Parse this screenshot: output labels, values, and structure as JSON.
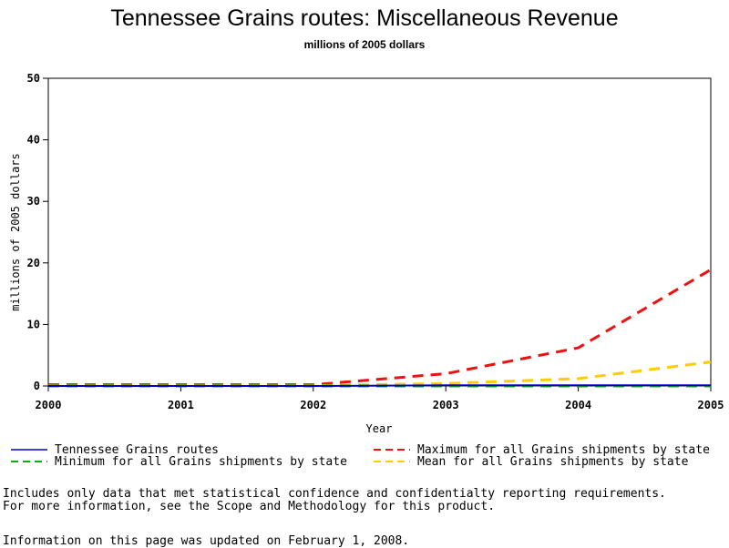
{
  "title": "Tennessee Grains routes: Miscellaneous Revenue",
  "subtitle": "millions of 2005 dollars",
  "notes": [
    "Includes only data that met statistical confidence and confidentialty reporting requirements.",
    "For more information, see the Scope and Methodology for this product."
  ],
  "updated": "Information on this page was updated on February 1, 2008.",
  "chart_data": {
    "type": "line",
    "title": "Tennessee Grains routes: Miscellaneous Revenue",
    "subtitle": "millions of 2005 dollars",
    "xlabel": "Year",
    "ylabel": "millions of 2005 dollars",
    "x": [
      2000,
      2001,
      2002,
      2003,
      2004,
      2005
    ],
    "xticks": [
      "2000",
      "2001",
      "2002",
      "2003",
      "2004",
      "2005"
    ],
    "yticks": [
      "0",
      "10",
      "20",
      "30",
      "40",
      "50"
    ],
    "xlim": [
      2000,
      2005
    ],
    "ylim": [
      0,
      50
    ],
    "grid": false,
    "legend_position": "bottom",
    "series": [
      {
        "name": "Tennessee Grains routes",
        "values": [
          0,
          0,
          0,
          0.1,
          0.1,
          0.1
        ],
        "color": "#0000cc",
        "dash": "solid"
      },
      {
        "name": "Maximum for all Grains shipments by state",
        "values": [
          0.2,
          0.2,
          0.2,
          2.0,
          6.2,
          18.9
        ],
        "color": "#ee1111",
        "dash": "dashed"
      },
      {
        "name": "Minimum for all Grains shipments by state",
        "values": [
          0,
          0,
          0,
          0,
          0,
          0
        ],
        "color": "#11aa11",
        "dash": "dashed"
      },
      {
        "name": "Mean for all Grains shipments by state",
        "values": [
          0.05,
          0.05,
          0.05,
          0.4,
          1.2,
          3.9
        ],
        "color": "#ffcc00",
        "dash": "dashed"
      }
    ]
  }
}
